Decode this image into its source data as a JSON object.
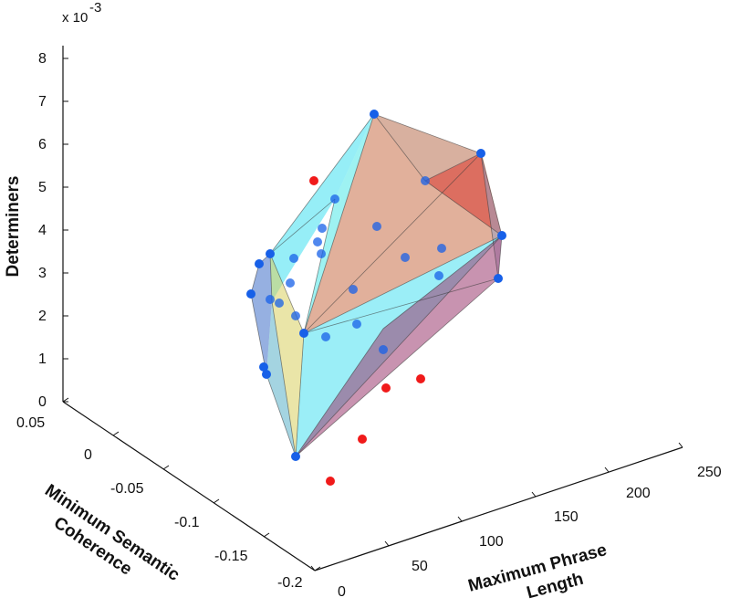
{
  "chart_data": {
    "type": "scatter",
    "title": "",
    "axes": {
      "x": {
        "label": "Maximum Phrase Length",
        "ticks": [
          0,
          50,
          100,
          150,
          200,
          250
        ],
        "range": [
          0,
          250
        ]
      },
      "y": {
        "label": "Minimum Semantic Coherence",
        "ticks": [
          0.05,
          0,
          -0.05,
          -0.1,
          -0.15,
          -0.2
        ],
        "range": [
          -0.2,
          0.05
        ]
      },
      "z": {
        "label": "Determiners",
        "ticks": [
          0,
          1,
          2,
          3,
          4,
          5,
          6,
          7,
          8
        ],
        "range": [
          0,
          8
        ],
        "exponent_label": "x 10",
        "exponent_value": "-3"
      }
    },
    "hull": {
      "faces": [
        {
          "color": "#40e0f0",
          "points": [
            [
              296,
              278
            ],
            [
              410,
              125
            ],
            [
              367,
              218
            ],
            [
              298,
              330
            ]
          ]
        },
        {
          "color": "#b87050",
          "points": [
            [
              410,
              125
            ],
            [
              527,
              168
            ],
            [
              466,
              198
            ]
          ]
        },
        {
          "color": "#c87048",
          "points": [
            [
              410,
              125
            ],
            [
              466,
              198
            ],
            [
              528,
              168
            ],
            [
              550,
              258
            ],
            [
              333,
              365
            ]
          ]
        },
        {
          "color": "#d83830",
          "points": [
            [
              466,
              198
            ],
            [
              527,
              168
            ],
            [
              550,
              258
            ]
          ]
        },
        {
          "color": "#4fe8e8",
          "points": [
            [
              367,
              218
            ],
            [
              410,
              125
            ],
            [
              333,
              365
            ]
          ]
        },
        {
          "color": "#9aa0c0",
          "points": [
            [
              527,
              168
            ],
            [
              550,
              258
            ],
            [
              546,
              305
            ]
          ]
        },
        {
          "color": "#4070c8",
          "points": [
            [
              275,
              322
            ],
            [
              284,
              289
            ],
            [
              296,
              278
            ],
            [
              298,
              330
            ],
            [
              292,
              410
            ]
          ]
        },
        {
          "color": "#d8d060",
          "points": [
            [
              296,
              278
            ],
            [
              298,
              330
            ],
            [
              324,
              500
            ],
            [
              333,
              365
            ]
          ]
        },
        {
          "color": "#48e0f0",
          "points": [
            [
              333,
              365
            ],
            [
              550,
              258
            ],
            [
              324,
              500
            ]
          ]
        },
        {
          "color": "#9a3a70",
          "points": [
            [
              550,
              258
            ],
            [
              546,
              305
            ],
            [
              324,
              500
            ],
            [
              420,
              360
            ]
          ]
        },
        {
          "color": "#5ab0c8",
          "points": [
            [
              292,
              410
            ],
            [
              298,
              330
            ],
            [
              324,
              500
            ]
          ]
        }
      ],
      "edges": [
        [
          [
            410,
            125
          ],
          [
            527,
            168
          ]
        ],
        [
          [
            410,
            125
          ],
          [
            296,
            278
          ]
        ],
        [
          [
            410,
            125
          ],
          [
            466,
            198
          ]
        ],
        [
          [
            410,
            125
          ],
          [
            333,
            365
          ]
        ],
        [
          [
            527,
            168
          ],
          [
            550,
            258
          ]
        ],
        [
          [
            527,
            168
          ],
          [
            466,
            198
          ]
        ],
        [
          [
            527,
            168
          ],
          [
            333,
            365
          ]
        ],
        [
          [
            527,
            168
          ],
          [
            546,
            305
          ]
        ],
        [
          [
            550,
            258
          ],
          [
            546,
            305
          ]
        ],
        [
          [
            550,
            258
          ],
          [
            333,
            365
          ]
        ],
        [
          [
            550,
            258
          ],
          [
            466,
            198
          ]
        ],
        [
          [
            550,
            258
          ],
          [
            324,
            500
          ]
        ],
        [
          [
            546,
            305
          ],
          [
            324,
            500
          ]
        ],
        [
          [
            296,
            278
          ],
          [
            284,
            289
          ]
        ],
        [
          [
            284,
            289
          ],
          [
            275,
            322
          ]
        ],
        [
          [
            275,
            322
          ],
          [
            292,
            410
          ]
        ],
        [
          [
            292,
            410
          ],
          [
            324,
            500
          ]
        ],
        [
          [
            296,
            278
          ],
          [
            333,
            365
          ]
        ],
        [
          [
            333,
            365
          ],
          [
            324,
            500
          ]
        ],
        [
          [
            296,
            278
          ],
          [
            298,
            330
          ]
        ],
        [
          [
            298,
            330
          ],
          [
            324,
            500
          ]
        ],
        [
          [
            367,
            218
          ],
          [
            333,
            365
          ]
        ],
        [
          [
            367,
            218
          ],
          [
            296,
            278
          ]
        ],
        [
          [
            333,
            365
          ],
          [
            546,
            305
          ]
        ],
        [
          [
            420,
            360
          ],
          [
            550,
            258
          ]
        ],
        [
          [
            420,
            360
          ],
          [
            324,
            500
          ]
        ]
      ]
    },
    "points_hull_vertices": [
      [
        410,
        125
      ],
      [
        527,
        168
      ],
      [
        550,
        258
      ],
      [
        546,
        305
      ],
      [
        296,
        278
      ],
      [
        284,
        289
      ],
      [
        275,
        322
      ],
      [
        289,
        402
      ],
      [
        292,
        410
      ],
      [
        333,
        365
      ],
      [
        324,
        500
      ]
    ],
    "points_inside": [
      [
        367,
        218
      ],
      [
        353,
        250
      ],
      [
        348,
        265
      ],
      [
        352,
        278
      ],
      [
        322,
        283
      ],
      [
        318,
        310
      ],
      [
        296,
        328
      ],
      [
        306,
        332
      ],
      [
        324,
        346
      ],
      [
        387,
        317
      ],
      [
        391,
        355
      ],
      [
        357,
        369
      ],
      [
        444,
        282
      ],
      [
        466,
        198
      ],
      [
        413,
        248
      ],
      [
        484,
        272
      ],
      [
        481,
        302
      ],
      [
        420,
        383
      ]
    ],
    "points_outside": [
      [
        344,
        198
      ],
      [
        461,
        415
      ],
      [
        423,
        425
      ],
      [
        397,
        481
      ],
      [
        362,
        527
      ]
    ]
  },
  "colors": {
    "point_blue": "#1760e8",
    "point_dark": "#3a1f80",
    "point_red": "#f01a1a",
    "edge": "#3a3a3a",
    "axis": "#111111"
  }
}
